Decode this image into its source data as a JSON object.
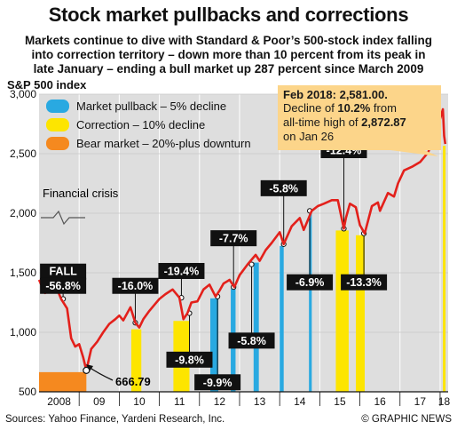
{
  "header": {
    "title": "Stock market pullbacks and corrections",
    "subtitle_lines": [
      "Markets continue to dive with Standard & Poor’s 500-stock index falling",
      "into correction territory – down more than 10 percent from its peak in",
      "late January – ending a bull market up 287 percent since March 2009"
    ]
  },
  "footer": {
    "sources": "Sources: Yahoo Finance, Yardeni Research, Inc.",
    "credit": "© GRAPHIC NEWS"
  },
  "colors": {
    "background": "#dedede",
    "line": "#e3201b",
    "pullback": "#29a9e1",
    "correction": "#fde500",
    "bear": "#f5891f",
    "box": "#111111",
    "callout_fill": "#fcd58a"
  },
  "legend": [
    {
      "label": "Market pullback – 5% decline",
      "color": "#29a9e1"
    },
    {
      "label": "Correction – 10% decline",
      "color": "#fde500"
    },
    {
      "label": "Bear market – 20%-plus downturn",
      "color": "#f5891f"
    }
  ],
  "annotations": {
    "crisis": "Financial crisis",
    "fall_title": "FALL",
    "low_value": "666.79",
    "callout_title": "Feb 2018: 2,581.00.",
    "callout_l2_pre": "Decline of ",
    "callout_l2_bold": "10.2%",
    "callout_l2_post": " from",
    "callout_l3_pre": "all-time high of ",
    "callout_l3_bold": "2,872.87",
    "callout_l4": "on Jan 26"
  },
  "chart_data": {
    "type": "line",
    "title": "S&P 500 index",
    "ylim": [
      500,
      3000
    ],
    "yticks": [
      500,
      1000,
      1500,
      2000,
      2500,
      3000
    ],
    "ytick_labels": [
      "500",
      "1,000",
      "1,500",
      "2,000",
      "2,500",
      "3,000"
    ],
    "xlim": [
      2008,
      2018.2
    ],
    "xtick_labels": [
      {
        "label": "2008",
        "x": 2008.5
      },
      {
        "label": "09",
        "x": 2009.5
      },
      {
        "label": "10",
        "x": 2010.5
      },
      {
        "label": "11",
        "x": 2011.5
      },
      {
        "label": "12",
        "x": 2012.5
      },
      {
        "label": "13",
        "x": 2013.5
      },
      {
        "label": "14",
        "x": 2014.5
      },
      {
        "label": "15",
        "x": 2015.5
      },
      {
        "label": "16",
        "x": 2016.5
      },
      {
        "label": "17",
        "x": 2017.5
      },
      {
        "label": "18",
        "x": 2018.1
      }
    ],
    "x": [
      2008.0,
      2008.15,
      2008.3,
      2008.4,
      2008.55,
      2008.7,
      2008.8,
      2008.9,
      2009.0,
      2009.1,
      2009.18,
      2009.3,
      2009.45,
      2009.6,
      2009.75,
      2009.9,
      2010.0,
      2010.1,
      2010.28,
      2010.4,
      2010.5,
      2010.6,
      2010.75,
      2010.9,
      2011.0,
      2011.15,
      2011.33,
      2011.5,
      2011.6,
      2011.7,
      2011.8,
      2011.95,
      2012.1,
      2012.25,
      2012.4,
      2012.5,
      2012.6,
      2012.75,
      2012.87,
      2013.0,
      2013.2,
      2013.4,
      2013.5,
      2013.65,
      2013.8,
      2014.0,
      2014.1,
      2014.3,
      2014.5,
      2014.6,
      2014.8,
      2014.95,
      2015.1,
      2015.3,
      2015.45,
      2015.6,
      2015.65,
      2015.75,
      2015.9,
      2016.0,
      2016.12,
      2016.3,
      2016.45,
      2016.5,
      2016.7,
      2016.85,
      2016.95,
      2017.1,
      2017.3,
      2017.5,
      2017.7,
      2017.9,
      2018.07,
      2018.1,
      2018.13
    ],
    "y": [
      1440,
      1330,
      1380,
      1400,
      1280,
      1200,
      950,
      880,
      900,
      790,
      680,
      860,
      920,
      1000,
      1070,
      1110,
      1140,
      1100,
      1210,
      1080,
      1040,
      1110,
      1180,
      1240,
      1280,
      1320,
      1360,
      1290,
      1110,
      1160,
      1250,
      1260,
      1360,
      1400,
      1300,
      1350,
      1410,
      1440,
      1380,
      1480,
      1570,
      1650,
      1600,
      1690,
      1750,
      1840,
      1740,
      1890,
      1960,
      1860,
      2020,
      2060,
      2080,
      2110,
      2110,
      1870,
      1960,
      2080,
      2050,
      1900,
      1830,
      2060,
      2090,
      2020,
      2170,
      2140,
      2250,
      2360,
      2390,
      2430,
      2510,
      2680,
      2872.87,
      2650,
      2581
    ],
    "pullbacks": [
      {
        "start": 2012.27,
        "end": 2012.47
      },
      {
        "start": 2012.78,
        "end": 2012.9
      },
      {
        "start": 2013.35,
        "end": 2013.48
      },
      {
        "start": 2014.0,
        "end": 2014.1
      },
      {
        "start": 2014.73,
        "end": 2014.8
      }
    ],
    "corrections": [
      {
        "start": 2010.3,
        "end": 2010.55
      },
      {
        "start": 2011.35,
        "end": 2011.75
      },
      {
        "start": 2015.4,
        "end": 2015.72
      },
      {
        "start": 2015.9,
        "end": 2016.12
      },
      {
        "start": 2018.07,
        "end": 2018.13
      }
    ],
    "bear": {
      "start": 2008.0,
      "end": 2009.18
    },
    "decline_labels": [
      {
        "label": "-56.8%",
        "x": 2008.6,
        "y": 1390
      },
      {
        "label": "-16.0%",
        "x": 2010.4,
        "y": 1390
      },
      {
        "label": "-19.4%",
        "x": 2011.55,
        "y": 1515
      },
      {
        "label": "-9.8%",
        "x": 2011.75,
        "y": 770
      },
      {
        "label": "-9.9%",
        "x": 2012.45,
        "y": 580
      },
      {
        "label": "-7.7%",
        "x": 2012.85,
        "y": 1790
      },
      {
        "label": "-5.8%",
        "x": 2013.3,
        "y": 930
      },
      {
        "label": "-5.8%",
        "x": 2014.1,
        "y": 2210
      },
      {
        "label": "-6.9%",
        "x": 2014.75,
        "y": 1420
      },
      {
        "label": "-12.4%",
        "x": 2015.6,
        "y": 2530
      },
      {
        "label": "-13.3%",
        "x": 2016.1,
        "y": 1420
      }
    ]
  }
}
